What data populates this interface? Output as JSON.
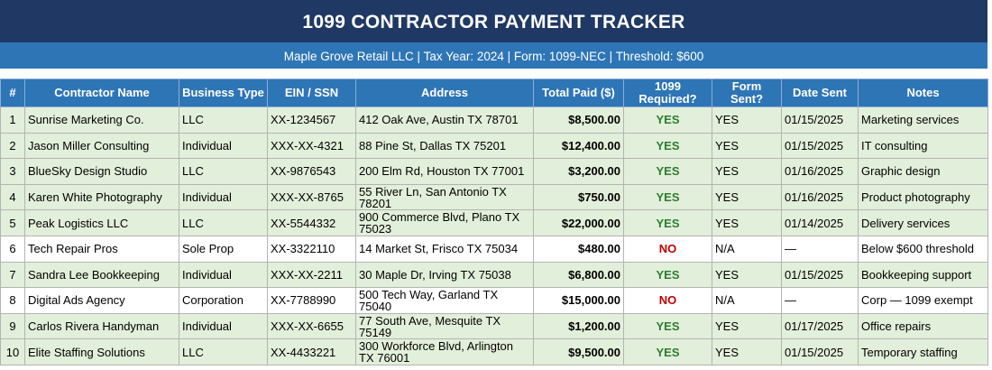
{
  "title": "1099 CONTRACTOR PAYMENT TRACKER",
  "subtitle": "Maple Grove Retail LLC  |  Tax Year: 2024  |  Form: 1099-NEC  |  Threshold: $600",
  "colors": {
    "title_bg": "#1f3864",
    "subtitle_bg": "#2e75b6",
    "header_bg": "#2e75b6",
    "required_row_bg": "#e2efda",
    "yes_color": "#2e7d32",
    "no_color": "#c00000"
  },
  "columns": [
    "#",
    "Contractor Name",
    "Business Type",
    "EIN / SSN",
    "Address",
    "Total Paid ($)",
    "1099 Required?",
    "Form Sent?",
    "Date Sent",
    "Notes"
  ],
  "rows": [
    {
      "num": "1",
      "name": "Sunrise Marketing Co.",
      "type": "LLC",
      "ein": "XX-1234567",
      "address": "412 Oak Ave, Austin TX 78701",
      "paid": "$8,500.00",
      "required": "YES",
      "sent": "YES",
      "date": "01/15/2025",
      "notes": "Marketing services"
    },
    {
      "num": "2",
      "name": "Jason Miller Consulting",
      "type": "Individual",
      "ein": "XXX-XX-4321",
      "address": "88 Pine St, Dallas TX 75201",
      "paid": "$12,400.00",
      "required": "YES",
      "sent": "YES",
      "date": "01/15/2025",
      "notes": "IT consulting"
    },
    {
      "num": "3",
      "name": "BlueSky Design Studio",
      "type": "LLC",
      "ein": "XX-9876543",
      "address": "200 Elm Rd, Houston TX 77001",
      "paid": "$3,200.00",
      "required": "YES",
      "sent": "YES",
      "date": "01/16/2025",
      "notes": "Graphic design"
    },
    {
      "num": "4",
      "name": "Karen White Photography",
      "type": "Individual",
      "ein": "XXX-XX-8765",
      "address": "55 River Ln, San Antonio TX 78201",
      "paid": "$750.00",
      "required": "YES",
      "sent": "YES",
      "date": "01/16/2025",
      "notes": "Product photography"
    },
    {
      "num": "5",
      "name": "Peak Logistics LLC",
      "type": "LLC",
      "ein": "XX-5544332",
      "address": "900 Commerce Blvd, Plano TX 75023",
      "paid": "$22,000.00",
      "required": "YES",
      "sent": "YES",
      "date": "01/14/2025",
      "notes": "Delivery services"
    },
    {
      "num": "6",
      "name": "Tech Repair Pros",
      "type": "Sole Prop",
      "ein": "XX-3322110",
      "address": "14 Market St, Frisco TX 75034",
      "paid": "$480.00",
      "required": "NO",
      "sent": "N/A",
      "date": "—",
      "notes": "Below $600 threshold"
    },
    {
      "num": "7",
      "name": "Sandra Lee Bookkeeping",
      "type": "Individual",
      "ein": "XXX-XX-2211",
      "address": "30 Maple Dr, Irving TX 75038",
      "paid": "$6,800.00",
      "required": "YES",
      "sent": "YES",
      "date": "01/15/2025",
      "notes": "Bookkeeping support"
    },
    {
      "num": "8",
      "name": "Digital Ads Agency",
      "type": "Corporation",
      "ein": "XX-7788990",
      "address": "500 Tech Way, Garland TX 75040",
      "paid": "$15,000.00",
      "required": "NO",
      "sent": "N/A",
      "date": "—",
      "notes": "Corp — 1099 exempt"
    },
    {
      "num": "9",
      "name": "Carlos Rivera Handyman",
      "type": "Individual",
      "ein": "XXX-XX-6655",
      "address": "77 South Ave, Mesquite TX 75149",
      "paid": "$1,200.00",
      "required": "YES",
      "sent": "YES",
      "date": "01/17/2025",
      "notes": "Office repairs"
    },
    {
      "num": "10",
      "name": "Elite Staffing Solutions",
      "type": "LLC",
      "ein": "XX-4433221",
      "address": "300 Workforce Blvd, Arlington TX 76001",
      "paid": "$9,500.00",
      "required": "YES",
      "sent": "YES",
      "date": "01/15/2025",
      "notes": "Temporary staffing"
    }
  ]
}
